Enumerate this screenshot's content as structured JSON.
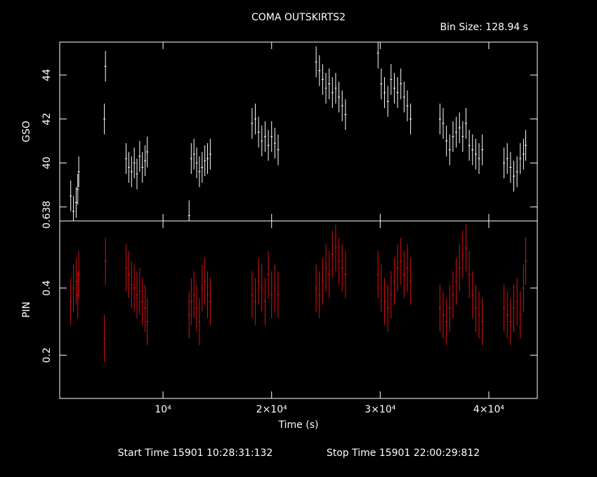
{
  "header": {
    "title": "COMA OUTSKIRTS2",
    "bin_size": "Bin Size:  128.94 s"
  },
  "footer": {
    "start": "Start Time 15901 10:28:31:132",
    "stop": "Stop Time 15901 22:00:29:812"
  },
  "chart_data": [
    {
      "type": "errorbar",
      "ylabel": "GSO",
      "color": "#ffffff",
      "x": [
        1500,
        1750,
        2000,
        2150,
        2240,
        4600,
        4700,
        6600,
        6850,
        7100,
        7350,
        7600,
        7850,
        8100,
        8350,
        8550,
        12400,
        12600,
        12850,
        13100,
        13350,
        13600,
        13850,
        14100,
        14350,
        18200,
        18500,
        18800,
        19100,
        19400,
        19700,
        20000,
        20300,
        20600,
        24100,
        24400,
        24700,
        25000,
        25300,
        25600,
        25900,
        26200,
        26500,
        26800,
        29800,
        30100,
        30400,
        30700,
        31000,
        31300,
        31600,
        31900,
        32200,
        32500,
        32800,
        35500,
        35800,
        36100,
        36400,
        36700,
        37000,
        37300,
        37600,
        37900,
        38200,
        38500,
        38800,
        39100,
        39400,
        41400,
        41700,
        42000,
        42300,
        42600,
        42900,
        43200,
        43400
      ],
      "values": [
        38.5,
        37.8,
        38.2,
        38.8,
        39.6,
        42.0,
        44.4,
        40.2,
        39.8,
        39.6,
        40.0,
        39.5,
        40.3,
        39.8,
        40.1,
        40.5,
        37.6,
        40.2,
        40.4,
        40.0,
        39.6,
        39.8,
        40.1,
        40.2,
        40.4,
        41.8,
        42.0,
        41.4,
        41.0,
        41.2,
        40.8,
        41.2,
        40.9,
        40.6,
        44.6,
        44.2,
        43.8,
        43.4,
        43.6,
        43.2,
        43.4,
        43.0,
        42.6,
        42.2,
        45.0,
        43.6,
        43.2,
        42.8,
        43.8,
        43.4,
        43.2,
        43.6,
        43.0,
        42.6,
        42.0,
        42.0,
        41.8,
        41.0,
        40.6,
        41.2,
        41.4,
        41.6,
        41.2,
        41.8,
        40.8,
        40.6,
        40.4,
        40.2,
        40.6,
        40.0,
        40.2,
        39.8,
        39.4,
        39.6,
        40.2,
        40.4,
        40.8
      ],
      "yerr": 0.7,
      "ylim": [
        37.36,
        45.5
      ],
      "yticks": [
        38,
        40,
        42,
        44
      ]
    },
    {
      "type": "errorbar",
      "ylabel": "PIN",
      "xlabel": "Time (s)",
      "color": "#e01010",
      "x": [
        1500,
        1750,
        2000,
        2150,
        2240,
        4600,
        4700,
        6600,
        6850,
        7100,
        7350,
        7600,
        7850,
        8100,
        8350,
        8550,
        12400,
        12600,
        12850,
        13100,
        13350,
        13600,
        13850,
        14100,
        14350,
        18200,
        18500,
        18800,
        19100,
        19400,
        19700,
        20000,
        20300,
        20600,
        24100,
        24400,
        24700,
        25000,
        25300,
        25600,
        25900,
        26200,
        26500,
        26800,
        29800,
        30100,
        30400,
        30700,
        31000,
        31300,
        31600,
        31900,
        32200,
        32500,
        32800,
        35500,
        35800,
        36100,
        36400,
        36700,
        37000,
        37300,
        37600,
        37900,
        38200,
        38500,
        38800,
        39100,
        39400,
        41400,
        41700,
        42000,
        42300,
        42600,
        42900,
        43200,
        43400
      ],
      "values": [
        0.36,
        0.4,
        0.42,
        0.38,
        0.44,
        0.25,
        0.48,
        0.46,
        0.44,
        0.41,
        0.4,
        0.38,
        0.39,
        0.36,
        0.34,
        0.3,
        0.32,
        0.36,
        0.38,
        0.34,
        0.3,
        0.4,
        0.42,
        0.38,
        0.36,
        0.38,
        0.36,
        0.42,
        0.4,
        0.36,
        0.44,
        0.38,
        0.4,
        0.38,
        0.4,
        0.38,
        0.42,
        0.46,
        0.44,
        0.5,
        0.52,
        0.48,
        0.46,
        0.44,
        0.44,
        0.4,
        0.36,
        0.34,
        0.38,
        0.42,
        0.46,
        0.48,
        0.44,
        0.46,
        0.42,
        0.34,
        0.32,
        0.3,
        0.34,
        0.38,
        0.42,
        0.46,
        0.5,
        0.52,
        0.44,
        0.38,
        0.34,
        0.32,
        0.3,
        0.34,
        0.32,
        0.3,
        0.34,
        0.36,
        0.32,
        0.4,
        0.48
      ],
      "yerr": 0.07,
      "ylim": [
        0.071,
        0.6
      ],
      "yticks": [
        0.2,
        0.4,
        0.6
      ],
      "xlim": [
        485,
        44466
      ],
      "xticks": [
        {
          "value": 10000,
          "label": "10⁴"
        },
        {
          "value": 20000,
          "label": "2×10⁴"
        },
        {
          "value": 30000,
          "label": "3×10⁴"
        },
        {
          "value": 40000,
          "label": "4×10⁴"
        }
      ]
    }
  ]
}
